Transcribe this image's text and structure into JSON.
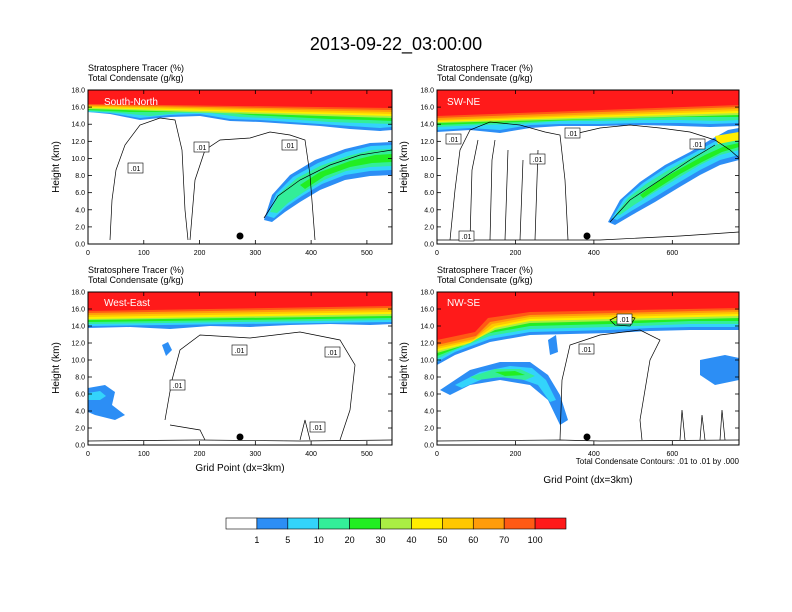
{
  "title": "2013-09-22_03:00:00",
  "colors": {
    "levels": [
      "#ffffff",
      "#2c8ef5",
      "#33d4fb",
      "#33ee99",
      "#22ee22",
      "#aaee44",
      "#ffee00",
      "#ffc800",
      "#ff9c0a",
      "#ff5a14",
      "#ff1a1a"
    ]
  },
  "chart_data": [
    {
      "type": "contour",
      "panel_label": "South-North",
      "subtitle_line1": "Stratosphere Tracer   (%)",
      "subtitle_line2": "Total Condensate   (g/kg)",
      "ylabel": "Height (km)",
      "xlabel": "",
      "xlim": [
        0,
        545
      ],
      "xticks": [
        "0",
        "100",
        "200",
        "300",
        "400",
        "500"
      ],
      "xtick_values": [
        0,
        100,
        200,
        300,
        400,
        500
      ],
      "ylim": [
        0,
        18
      ],
      "yticks": [
        "0.0",
        "2.0",
        "4.0",
        "6.0",
        "8.0",
        "10.0",
        "12.0",
        "14.0",
        "16.0",
        "18.0"
      ],
      "contour_labels": [
        ".01",
        ".01",
        ".01"
      ],
      "marker_x": 272,
      "marker_y": 1.1
    },
    {
      "type": "contour",
      "panel_label": "SW-NE",
      "subtitle_line1": "Stratosphere Tracer   (%)",
      "subtitle_line2": "Total Condensate   (g/kg)",
      "ylabel": "Height (km)",
      "xlabel": "",
      "xlim": [
        0,
        770
      ],
      "xticks": [
        "0",
        "200",
        "400",
        "600"
      ],
      "xtick_values": [
        0,
        200,
        400,
        600
      ],
      "ylim": [
        0,
        18
      ],
      "yticks": [
        "0.0",
        "2.0",
        "4.0",
        "6.0",
        "8.0",
        "10.0",
        "12.0",
        "14.0",
        "16.0",
        "18.0"
      ],
      "contour_labels": [
        ".01",
        ".01",
        ".01",
        ".01",
        ".01"
      ],
      "marker_x": 385,
      "marker_y": 1.1
    },
    {
      "type": "contour",
      "panel_label": "West-East",
      "subtitle_line1": "Stratosphere Tracer   (%)",
      "subtitle_line2": "Total Condensate   (g/kg)",
      "ylabel": "Height (km)",
      "xlabel": "Grid Point (dx=3km)",
      "xlim": [
        0,
        545
      ],
      "xticks": [
        "0",
        "100",
        "200",
        "300",
        "400",
        "500"
      ],
      "xtick_values": [
        0,
        100,
        200,
        300,
        400,
        500
      ],
      "ylim": [
        0,
        18
      ],
      "yticks": [
        "0.0",
        "2.0",
        "4.0",
        "6.0",
        "8.0",
        "10.0",
        "12.0",
        "14.0",
        "16.0",
        "18.0"
      ],
      "contour_labels": [
        ".01",
        ".01",
        ".01",
        ".01"
      ],
      "marker_x": 272,
      "marker_y": 1.1
    },
    {
      "type": "contour",
      "panel_label": "NW-SE",
      "subtitle_line1": "Stratosphere Tracer   (%)",
      "subtitle_line2": "Total Condensate   (g/kg)",
      "ylabel": "Height (km)",
      "xlabel": "Grid Point (dx=3km)",
      "xlim": [
        0,
        770
      ],
      "xticks": [
        "0",
        "200",
        "400",
        "600"
      ],
      "xtick_values": [
        0,
        200,
        400,
        600
      ],
      "ylim": [
        0,
        18
      ],
      "yticks": [
        "0.0",
        "2.0",
        "4.0",
        "6.0",
        "8.0",
        "10.0",
        "12.0",
        "14.0",
        "16.0",
        "18.0"
      ],
      "contour_labels": [
        ".01",
        ".01"
      ],
      "marker_x": 385,
      "marker_y": 1.1
    }
  ],
  "footnote": "Total Condensate Contours: .01 to .01 by .000",
  "colorbar": {
    "ticks": [
      "1",
      "5",
      "10",
      "20",
      "30",
      "40",
      "50",
      "60",
      "70",
      "100"
    ]
  }
}
